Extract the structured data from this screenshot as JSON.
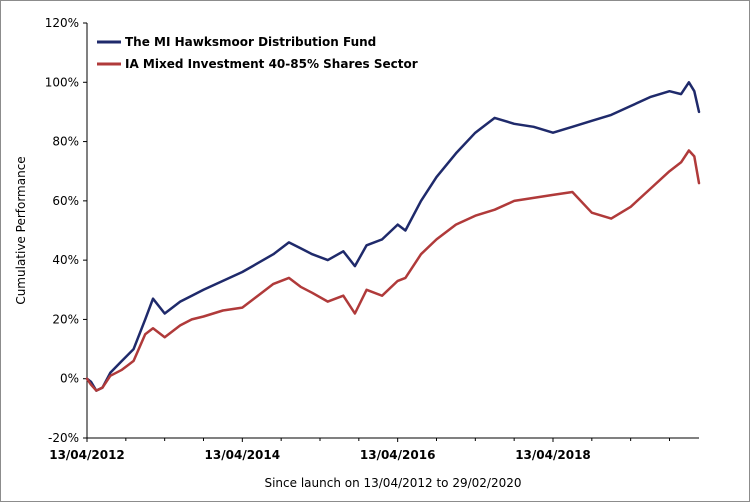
{
  "chart_data": {
    "type": "line",
    "xlabel": "Since launch on 13/04/2012 to 29/02/2020",
    "ylabel": "Cumulative Performance",
    "x_range": [
      "13/04/2012",
      "29/02/2020"
    ],
    "ylim": [
      -20,
      120
    ],
    "y_ticks": [
      "-20%",
      "0%",
      "20%",
      "40%",
      "60%",
      "80%",
      "100%",
      "120%"
    ],
    "y_tick_values": [
      -20,
      0,
      20,
      40,
      60,
      80,
      100,
      120
    ],
    "x_ticks": [
      "13/04/2012",
      "13/04/2014",
      "13/04/2016",
      "13/04/2018"
    ],
    "x_tick_years": [
      0,
      2,
      4,
      6
    ],
    "grid": false,
    "legend_position": "top-left",
    "series": [
      {
        "name": "The MI Hawksmoor Distribution Fund",
        "color": "#1f2a6b",
        "x": [
          0,
          0.05,
          0.12,
          0.2,
          0.3,
          0.45,
          0.6,
          0.75,
          0.85,
          1.0,
          1.2,
          1.35,
          1.5,
          1.75,
          2.0,
          2.2,
          2.4,
          2.6,
          2.75,
          2.9,
          3.1,
          3.3,
          3.45,
          3.6,
          3.8,
          4.0,
          4.1,
          4.3,
          4.5,
          4.75,
          5.0,
          5.25,
          5.5,
          5.75,
          6.0,
          6.25,
          6.5,
          6.75,
          7.0,
          7.25,
          7.5,
          7.65,
          7.75,
          7.82,
          7.88
        ],
        "y": [
          0,
          -1,
          -4,
          -3,
          2,
          6,
          10,
          20,
          27,
          22,
          26,
          28,
          30,
          33,
          36,
          39,
          42,
          46,
          44,
          42,
          40,
          43,
          38,
          45,
          47,
          52,
          50,
          60,
          68,
          76,
          83,
          88,
          86,
          85,
          83,
          85,
          87,
          89,
          92,
          95,
          97,
          96,
          100,
          97,
          90
        ]
      },
      {
        "name": "IA Mixed Investment 40-85% Shares Sector",
        "color": "#b03a3a",
        "x": [
          0,
          0.05,
          0.12,
          0.2,
          0.3,
          0.45,
          0.6,
          0.75,
          0.85,
          1.0,
          1.2,
          1.35,
          1.5,
          1.75,
          2.0,
          2.2,
          2.4,
          2.6,
          2.75,
          2.9,
          3.1,
          3.3,
          3.45,
          3.6,
          3.8,
          4.0,
          4.1,
          4.3,
          4.5,
          4.75,
          5.0,
          5.25,
          5.5,
          5.75,
          6.0,
          6.25,
          6.5,
          6.75,
          7.0,
          7.25,
          7.5,
          7.65,
          7.75,
          7.82,
          7.88
        ],
        "y": [
          0,
          -2,
          -4,
          -3,
          1,
          3,
          6,
          15,
          17,
          14,
          18,
          20,
          21,
          23,
          24,
          28,
          32,
          34,
          31,
          29,
          26,
          28,
          22,
          30,
          28,
          33,
          34,
          42,
          47,
          52,
          55,
          57,
          60,
          61,
          62,
          63,
          56,
          54,
          58,
          64,
          70,
          73,
          77,
          75,
          66
        ]
      }
    ]
  }
}
